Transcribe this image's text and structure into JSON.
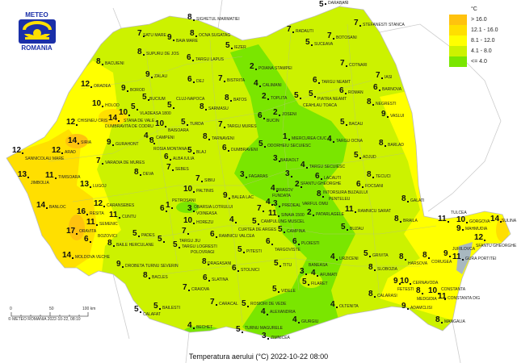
{
  "logo": {
    "top": "METEO",
    "bottom": "ROMANIA"
  },
  "title": "Temperatura aerului (°C) 2022-10-22 08:00",
  "legend": {
    "unit": "°C",
    "classes": [
      {
        "label": "> 16.0",
        "color": "#ffc20e"
      },
      {
        "label": "12.1 - 16.0",
        "color": "#ffdf00"
      },
      {
        "label": "8.1 - 12.0",
        "color": "#ffff00"
      },
      {
        "label": "4.1 - 8.0",
        "color": "#ccf200"
      },
      {
        "label": "<= 4.0",
        "color": "#7ae600"
      }
    ]
  },
  "scale": {
    "t0": "0",
    "t50": "50",
    "t100": "100 km",
    "copyright": "© METEO ROMANIA 2022-10-22, 08:10"
  },
  "stations": [
    {
      "name": "SATU MARE",
      "value": 7
    },
    {
      "name": "SUPURU DE JOS",
      "value": 8
    },
    {
      "name": "BAIA MARE",
      "value": 9
    },
    {
      "name": "SIGHETUL MARMATIEI",
      "value": 8
    },
    {
      "name": "OCNA SUGATAG",
      "value": 8
    },
    {
      "name": "BACUIENI",
      "value": 8
    },
    {
      "name": "ZALAU",
      "value": 9
    },
    {
      "name": "ORADEA",
      "value": 12
    },
    {
      "name": "BOROD",
      "value": 9
    },
    {
      "name": "BUCIUM",
      "value": 5
    },
    {
      "name": "VLADEASA 1800",
      "value": 5
    },
    {
      "name": "HOLOD",
      "value": 10
    },
    {
      "name": "STANA DE VALE",
      "value": 10
    },
    {
      "name": "DUMBRAVITA DE CODRU",
      "value": 14
    },
    {
      "name": "CHISINEU CRIS",
      "value": 12
    },
    {
      "name": "SIRIA",
      "value": 14
    },
    {
      "name": "ARAD",
      "value": 12
    },
    {
      "name": "SANNICOLAU MARE",
      "value": 12
    },
    {
      "name": "GURAHONT",
      "value": 9
    },
    {
      "name": "VARADIA DE MURES",
      "value": 7
    },
    {
      "name": "JIMBOLIA",
      "value": 13
    },
    {
      "name": "TIMISOARA",
      "value": 11
    },
    {
      "name": "LUGOJ",
      "value": 13
    },
    {
      "name": "DEVA",
      "value": 8
    },
    {
      "name": "BANLOC",
      "value": 14
    },
    {
      "name": "CARANSEBES",
      "value": 12
    },
    {
      "name": "RESITA",
      "value": 16
    },
    {
      "name": "CUNTU",
      "value": 11
    },
    {
      "name": "SEMENIC",
      "value": 11
    },
    {
      "name": "ORAVITA",
      "value": 17
    },
    {
      "name": "BOZOVICI",
      "value": 6
    },
    {
      "name": "MOLDOVA VECHE",
      "value": 14
    },
    {
      "name": "BAILE HERCULANE",
      "value": 8
    },
    {
      "name": "DROBETA TURNU SEVERIN",
      "value": 9
    },
    {
      "name": "BACLES",
      "value": 8
    },
    {
      "name": "CALAFAT",
      "value": 5
    },
    {
      "name": "BAILESTI",
      "value": 5
    },
    {
      "name": "BECHET",
      "value": 4
    },
    {
      "name": "CRAIOVA",
      "value": 7
    },
    {
      "name": "CARACAL",
      "value": 7
    },
    {
      "name": "PADES",
      "value": 5
    },
    {
      "name": "TARGU JIU",
      "value": 5
    },
    {
      "name": "TARGU LOGRESTI",
      "value": 5
    },
    {
      "name": "DRAGASANI",
      "value": 8
    },
    {
      "name": "SLATINA",
      "value": 6
    },
    {
      "name": "PETROSANI",
      "value": 6
    },
    {
      "name": "OBARSIA LOTRULUI",
      "value": 1
    },
    {
      "name": "VOINEASA",
      "value": 3
    },
    {
      "name": "HOREZU",
      "value": 10
    },
    {
      "name": "POLOVRAGI",
      "value": 7
    },
    {
      "name": "RAMNICU VALCEA",
      "value": 6
    },
    {
      "name": "CURTEA DE ARGES",
      "value": 4
    },
    {
      "name": "CAMPULUNG MUSCEL",
      "value": 5
    },
    {
      "name": "PITESTI",
      "value": 5
    },
    {
      "name": "TARGOVISTE",
      "value": 6
    },
    {
      "name": "PLOIESTI",
      "value": 6
    },
    {
      "name": "SINAIA 1500",
      "value": 11
    },
    {
      "name": "PREDEAL",
      "value": 3
    },
    {
      "name": "FUNDATA",
      "value": 7
    },
    {
      "name": "CAMPINA",
      "value": 5
    },
    {
      "name": "VARFUL OMU",
      "value": 4
    },
    {
      "name": "BRASOV",
      "value": 4
    },
    {
      "name": "FAGARAS",
      "value": 3
    },
    {
      "name": "SIBIU",
      "value": 7
    },
    {
      "name": "PALTINIS",
      "value": 10
    },
    {
      "name": "BALEA LAC",
      "value": 9
    },
    {
      "name": "SEBES",
      "value": 7
    },
    {
      "name": "ALBA IULIA",
      "value": 6
    },
    {
      "name": "BLAJ",
      "value": 5
    },
    {
      "name": "DUMBRAVENI",
      "value": 6
    },
    {
      "name": "TARNAVENI",
      "value": 8
    },
    {
      "name": "TURDA",
      "value": 5
    },
    {
      "name": "TARGU MURES",
      "value": 7
    },
    {
      "name": "ODORHEIU SECUIESC",
      "value": 5
    },
    {
      "name": "MIERCUREA CIUC",
      "value": 1
    },
    {
      "name": "BARAOLT",
      "value": 3
    },
    {
      "name": "SFANTU GHEORGHE",
      "value": 3
    },
    {
      "name": "TARGU SECUIESC",
      "value": 4
    },
    {
      "name": "LACAUTI",
      "value": 6
    },
    {
      "name": "INTORSURA BUZAULUI",
      "value": 2
    },
    {
      "name": "PENTELEU",
      "value": 8
    },
    {
      "name": "PATARLAGELE",
      "value": 2
    },
    {
      "name": "BUZAU",
      "value": 5
    },
    {
      "name": "RAMNICU SARAT",
      "value": 11
    },
    {
      "name": "FOCSANI",
      "value": 6
    },
    {
      "name": "TECUCI",
      "value": 8
    },
    {
      "name": "GALATI",
      "value": 8
    },
    {
      "name": "BRAILA",
      "value": 8
    },
    {
      "name": "ADJUD",
      "value": 5
    },
    {
      "name": "BARLAD",
      "value": 8
    },
    {
      "name": "VASLUI",
      "value": 9
    },
    {
      "name": "BACAU",
      "value": 5
    },
    {
      "name": "TARGU OCNA",
      "value": 4
    },
    {
      "name": "ROMAN",
      "value": 6
    },
    {
      "name": "PIATRA NEAMT",
      "value": 5
    },
    {
      "name": "CEAHLAU TOACA",
      "value": 5
    },
    {
      "name": "TOPLITA",
      "value": 2
    },
    {
      "name": "JOSENI",
      "value": 2
    },
    {
      "name": "BUCIN",
      "value": 6
    },
    {
      "name": "CALIMANI",
      "value": 4
    },
    {
      "name": "POIANA STAMPEI",
      "value": 2
    },
    {
      "name": "IEZER",
      "value": 5
    },
    {
      "name": "TARGU LAPUS",
      "value": 6
    },
    {
      "name": "DEJ",
      "value": 6
    },
    {
      "name": "BISTRITA",
      "value": 7
    },
    {
      "name": "BATOS",
      "value": 8
    },
    {
      "name": "CLUJ-NAPOCA",
      "value": 5
    },
    {
      "name": "SARMASU",
      "value": 8
    },
    {
      "name": "BAISOARA",
      "value": 10
    },
    {
      "name": "CAMPENI",
      "value": 4
    },
    {
      "name": "ROSIA MONTANA",
      "value": 8
    },
    {
      "name": "RADAUTI",
      "value": 7
    },
    {
      "name": "SUCEAVA",
      "value": 5
    },
    {
      "name": "BOTOSANI",
      "value": 7
    },
    {
      "name": "DARABANI",
      "value": 5
    },
    {
      "name": "STEFANESTI STANCA",
      "value": 7
    },
    {
      "name": "COTNARI",
      "value": 7
    },
    {
      "name": "IASI",
      "value": 7
    },
    {
      "name": "BARNOVA",
      "value": 6
    },
    {
      "name": "NEGRESTI",
      "value": 8
    },
    {
      "name": "TARGU NEAMT",
      "value": 6
    },
    {
      "name": "TULCEA",
      "value": 11
    },
    {
      "name": "GORGOVA",
      "value": 10
    },
    {
      "name": "MAHMUDIA",
      "value": 9
    },
    {
      "name": "SULINA",
      "value": 14
    },
    {
      "name": "SFANTU GHEORGHE",
      "value": 12
    },
    {
      "name": "JURILOVCA",
      "value": 9
    },
    {
      "name": "GURA PORTITEI",
      "value": 11
    },
    {
      "name": "CORUGEA",
      "value": 8
    },
    {
      "name": "HARSOVA",
      "value": 8
    },
    {
      "name": "CERNAVODA",
      "value": 10
    },
    {
      "name": "MEDGIDIA",
      "value": 8
    },
    {
      "name": "CONSTANTA",
      "value": 10
    },
    {
      "name": "CONSTANTA DIG",
      "value": 11
    },
    {
      "name": "MANGALIA",
      "value": 8
    },
    {
      "name": "ADAMCLISI",
      "value": 9
    },
    {
      "name": "FETESTI",
      "value": 9
    },
    {
      "name": "CALARASI",
      "value": 8
    },
    {
      "name": "SLOBOZIA",
      "value": 8
    },
    {
      "name": "URZICENI",
      "value": 4
    },
    {
      "name": "GRIVITA",
      "value": 5
    },
    {
      "name": "AFUMATI",
      "value": 4
    },
    {
      "name": "BANEASA",
      "value": 3
    },
    {
      "name": "FILARET",
      "value": 5
    },
    {
      "name": "OLTENITA",
      "value": 4
    },
    {
      "name": "GIURGIU",
      "value": 4
    },
    {
      "name": "ALEXANDRIA",
      "value": 4
    },
    {
      "name": "ZIMNICEA",
      "value": 3
    },
    {
      "name": "TURNU MAGURELE",
      "value": 5
    },
    {
      "name": "ROSIORI DE VEDE",
      "value": 5
    },
    {
      "name": "VIDELE",
      "value": 5
    },
    {
      "name": "TITU",
      "value": 5
    },
    {
      "name": "STOLNICI",
      "value": 6
    }
  ]
}
